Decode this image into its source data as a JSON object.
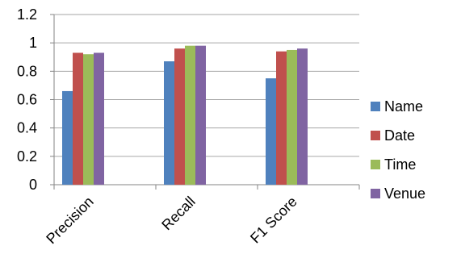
{
  "chart_data": {
    "type": "bar",
    "title": "",
    "xlabel": "",
    "ylabel": "",
    "categories": [
      "Precision",
      "Recall",
      "F1 Score"
    ],
    "series": [
      {
        "name": "Name",
        "color": "#4F81BD",
        "values": [
          0.66,
          0.87,
          0.75
        ]
      },
      {
        "name": "Date",
        "color": "#C0504D",
        "values": [
          0.93,
          0.96,
          0.94
        ]
      },
      {
        "name": "Time",
        "color": "#9BBB59",
        "values": [
          0.92,
          0.98,
          0.95
        ]
      },
      {
        "name": "Venue",
        "color": "#8064A2",
        "values": [
          0.93,
          0.98,
          0.96
        ]
      }
    ],
    "ylim": [
      0,
      1.2
    ],
    "yticks": [
      "0",
      "0.2",
      "0.4",
      "0.6",
      "0.8",
      "1",
      "1.2"
    ],
    "grid": true,
    "gridline_color": "#A6A6A6",
    "legend_position": "right"
  }
}
